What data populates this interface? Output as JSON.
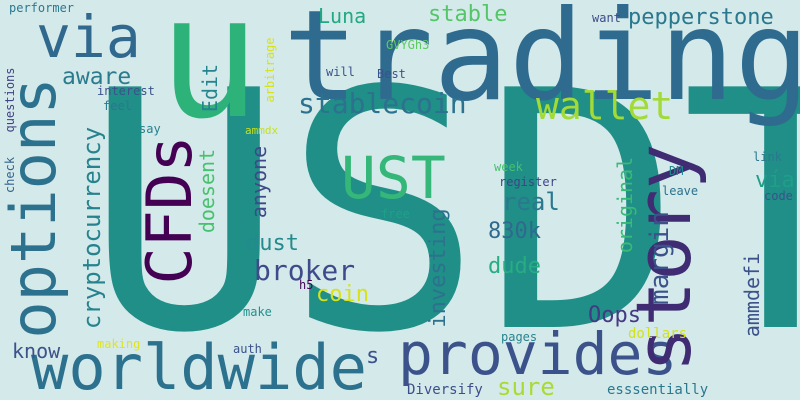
{
  "title": "",
  "words": [
    {
      "text": "USDT",
      "color": "#1f8f87",
      "rotate": 0
    },
    {
      "text": "trading",
      "color": "#2e6b8e",
      "rotate": 0
    },
    {
      "text": "u",
      "color": "#2db37a",
      "rotate": 0
    },
    {
      "text": "provides",
      "color": "#3b528b",
      "rotate": 0
    },
    {
      "text": "worldwide",
      "color": "#2c718e",
      "rotate": 0
    },
    {
      "text": "story",
      "color": "#3f2c72",
      "rotate": -90
    },
    {
      "text": "options",
      "color": "#2c728e",
      "rotate": -90
    },
    {
      "text": "CFDs",
      "color": "#440154",
      "rotate": -90
    },
    {
      "text": "UST",
      "color": "#35b779",
      "rotate": 0
    },
    {
      "text": "via",
      "color": "#31688e",
      "rotate": 0
    },
    {
      "text": "wallet",
      "color": "#a2da37",
      "rotate": 0
    },
    {
      "text": "stablecoin",
      "color": "#2c728e",
      "rotate": 0
    },
    {
      "text": "cryptocurrency",
      "color": "#26828e",
      "rotate": -90
    },
    {
      "text": "broker",
      "color": "#3e4a89",
      "rotate": 0
    },
    {
      "text": "margin",
      "color": "#3b528b",
      "rotate": -90
    },
    {
      "text": "pepperstone",
      "color": "#2a788e",
      "rotate": 0
    },
    {
      "text": "aware",
      "color": "#2a7b8e",
      "rotate": 0
    },
    {
      "text": "real",
      "color": "#2a788e",
      "rotate": 0
    },
    {
      "text": "830k",
      "color": "#30698e",
      "rotate": 0
    },
    {
      "text": "dude",
      "color": "#27ad81",
      "rotate": 0
    },
    {
      "text": "dust",
      "color": "#238a8d",
      "rotate": 0
    },
    {
      "text": "coin",
      "color": "#d8e219",
      "rotate": 0
    },
    {
      "text": "investing",
      "color": "#2d718e",
      "rotate": -90
    },
    {
      "text": "anyone",
      "color": "#3e4989",
      "rotate": -90
    },
    {
      "text": "doesent",
      "color": "#48c16e",
      "rotate": -90
    },
    {
      "text": "original",
      "color": "#39ba76",
      "rotate": -90
    },
    {
      "text": "vía",
      "color": "#1f9e89",
      "rotate": 0
    },
    {
      "text": "ammdefi",
      "color": "#3b528b",
      "rotate": -90
    },
    {
      "text": "Oops",
      "color": "#443983",
      "rotate": 0
    },
    {
      "text": "sure",
      "color": "#a8db34",
      "rotate": 0
    },
    {
      "text": "know",
      "color": "#3b528b",
      "rotate": 0
    },
    {
      "text": "Edit",
      "color": "#25848e",
      "rotate": -90
    },
    {
      "text": "stable",
      "color": "#55c568",
      "rotate": 0
    },
    {
      "text": "Luna",
      "color": "#22a884",
      "rotate": 0
    },
    {
      "text": "s",
      "color": "#3b528b",
      "rotate": 0
    },
    {
      "text": "Diversify",
      "color": "#3d4e8a",
      "rotate": 0
    },
    {
      "text": "esssentially",
      "color": "#2a788e",
      "rotate": 0
    },
    {
      "text": "pages",
      "color": "#25858e",
      "rotate": 0
    },
    {
      "text": "dollars",
      "color": "#d2e21b",
      "rotate": 0
    },
    {
      "text": "auth",
      "color": "#3b528b",
      "rotate": 0
    },
    {
      "text": "making",
      "color": "#e2e418",
      "rotate": 0
    },
    {
      "text": "make",
      "color": "#21918c",
      "rotate": 0
    },
    {
      "text": "h5",
      "color": "#440154",
      "rotate": 0
    },
    {
      "text": "free",
      "color": "#1fa088",
      "rotate": 0
    },
    {
      "text": "register",
      "color": "#404387",
      "rotate": 0
    },
    {
      "text": "week",
      "color": "#46c06f",
      "rotate": 0
    },
    {
      "text": "DM",
      "color": "#25848e",
      "rotate": 0
    },
    {
      "text": "leave",
      "color": "#2c728e",
      "rotate": 0
    },
    {
      "text": "code",
      "color": "#3b528b",
      "rotate": 0
    },
    {
      "text": "link",
      "color": "#2a788e",
      "rotate": 0
    },
    {
      "text": "want",
      "color": "#3e4c8a",
      "rotate": 0
    },
    {
      "text": "GVYGh3",
      "color": "#5ec962",
      "rotate": 0
    },
    {
      "text": "arbitrage",
      "color": "#d8e219",
      "rotate": -90
    },
    {
      "text": "ammdx",
      "color": "#c8e020",
      "rotate": 0
    },
    {
      "text": "will",
      "color": "#3b528b",
      "rotate": 0
    },
    {
      "text": "Best",
      "color": "#3b528b",
      "rotate": 0
    },
    {
      "text": "interest",
      "color": "#3b528b",
      "rotate": 0
    },
    {
      "text": "feel",
      "color": "#2a788e",
      "rotate": 0
    },
    {
      "text": "say",
      "color": "#26828e",
      "rotate": 0
    },
    {
      "text": "questions",
      "color": "#404387",
      "rotate": -90
    },
    {
      "text": "check",
      "color": "#33638d",
      "rotate": -90
    },
    {
      "text": "performer",
      "color": "#2a788e",
      "rotate": 0
    }
  ]
}
